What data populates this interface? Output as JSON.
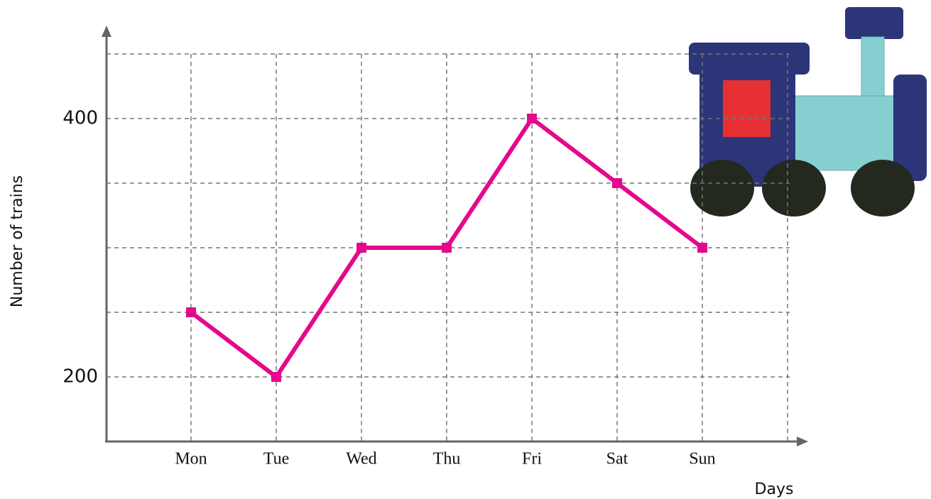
{
  "chart_data": {
    "type": "line",
    "x_label": "Days",
    "y_label": "Number of trains",
    "categories": [
      "Mon",
      "Tue",
      "Wed",
      "Thu",
      "Fri",
      "Sat",
      "Sun",
      null
    ],
    "values": [
      250,
      200,
      300,
      300,
      400,
      350,
      300,
      null
    ],
    "color": "#e5088c",
    "ylim": [
      150,
      450
    ],
    "yticks": [
      200,
      400
    ],
    "y_gridlines": [
      200,
      250,
      300,
      350,
      400,
      450
    ],
    "grid": true
  }
}
